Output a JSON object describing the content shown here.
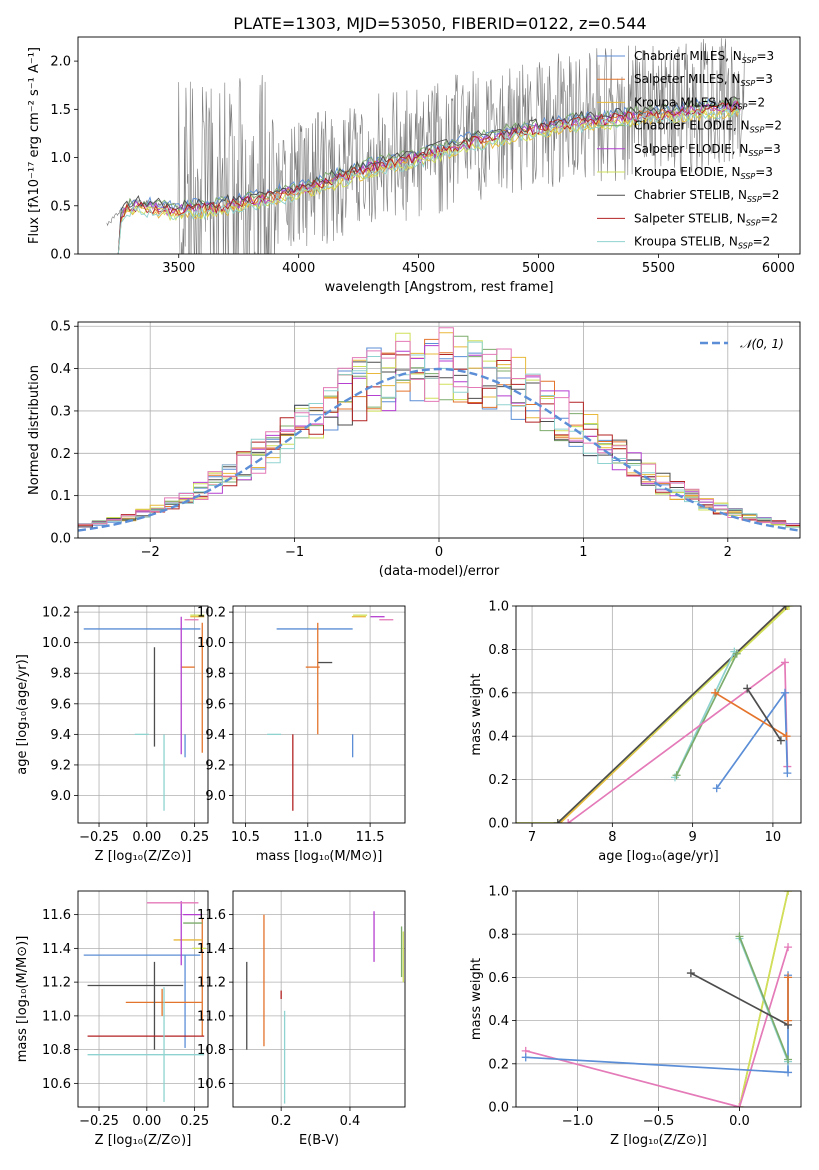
{
  "figure_title": "PLATE=1303, MJD=53050, FIBERID=0122, z=0.544",
  "colors": {
    "Chabrier MILES": "#5b8ed6",
    "Salpeter MILES": "#e4742c",
    "Kroupa MILES": "#e8b93c",
    "Chabrier ELODIE": "#7cac6c",
    "Salpeter ELODIE": "#b43fd0",
    "Kroupa ELODIE": "#cfe05a",
    "Chabrier STELIB": "#4d4d4d",
    "Salpeter STELIB": "#b22222",
    "Kroupa STELIB": "#8fd3d0",
    "pink": "#e47ab8",
    "blue": "#5b8ed6",
    "gauss": "#5b8ed6"
  },
  "chart_data": [
    {
      "id": "spectrum",
      "type": "line",
      "xlabel": "wavelength [Angstrom, rest frame]",
      "ylabel": "Flux [fλ10⁻¹⁷ erg cm⁻² s⁻¹ A⁻¹]",
      "xlim": [
        3080,
        6090
      ],
      "ylim": [
        0,
        2.25
      ],
      "xticks": [
        3500,
        4000,
        4500,
        5000,
        5500,
        6000
      ],
      "yticks": [
        0.0,
        0.5,
        1.0,
        1.5,
        2.0
      ],
      "grid": false,
      "legend_position": "top-right",
      "model_trend": {
        "x": [
          3200,
          3300,
          3500,
          3700,
          3900,
          4100,
          4300,
          4500,
          4700,
          4900,
          5100,
          5300,
          5500,
          5700,
          5850
        ],
        "y": [
          0.3,
          0.55,
          0.5,
          0.55,
          0.65,
          0.78,
          0.95,
          1.05,
          1.2,
          1.3,
          1.4,
          1.45,
          1.5,
          1.55,
          1.58
        ]
      },
      "series": [
        {
          "name": "Chabrier MILES",
          "nssp": "3"
        },
        {
          "name": "Salpeter MILES",
          "nssp": "3"
        },
        {
          "name": "Kroupa MILES",
          "nssp": "2"
        },
        {
          "name": "Chabrier ELODIE",
          "nssp": "2"
        },
        {
          "name": "Salpeter ELODIE",
          "nssp": "3"
        },
        {
          "name": "Kroupa ELODIE",
          "nssp": "3"
        },
        {
          "name": "Chabrier STELIB",
          "nssp": "2"
        },
        {
          "name": "Salpeter STELIB",
          "nssp": "2"
        },
        {
          "name": "Kroupa STELIB",
          "nssp": "2"
        }
      ]
    },
    {
      "id": "residuals",
      "type": "line",
      "xlabel": "(data-model)/error",
      "ylabel": "Normed distribution",
      "xlim": [
        -2.5,
        2.5
      ],
      "ylim": [
        0,
        0.51
      ],
      "xticks": [
        -2,
        -1,
        0,
        1,
        2
      ],
      "yticks": [
        0.0,
        0.1,
        0.2,
        0.3,
        0.4,
        0.5
      ],
      "grid": true,
      "legend_position": "top-right",
      "legend_label": "𝒩(0, 1)",
      "bin_width": 0.1
    },
    {
      "id": "age_vs_Z",
      "type": "scatter",
      "xlabel": "Z [log₁₀(Z/Z⊙)]",
      "ylabel": "age  [log₁₀(age/yr)]",
      "xlim": [
        -0.36,
        0.32
      ],
      "ylim": [
        8.82,
        10.24
      ],
      "xticks": [
        -0.25,
        0.0,
        0.25
      ],
      "xticklabels": [
        "−0.25",
        "0.00",
        "0.25"
      ],
      "yticks": [
        9.0,
        9.2,
        9.4,
        9.6,
        9.8,
        10.0,
        10.2
      ],
      "grid": true,
      "points": [
        {
          "series": "Chabrier MILES",
          "x": 0.28,
          "y": 10.09,
          "xerr": [
            0.61,
            0.0
          ],
          "yerr": [
            0.0,
            0.0
          ]
        },
        {
          "series": "Chabrier MILES",
          "x": 0.2,
          "y": 9.4,
          "xerr": [
            0.0,
            0.0
          ],
          "yerr": [
            0.15,
            0.0
          ]
        },
        {
          "series": "Salpeter MILES",
          "x": 0.24,
          "y": 9.84,
          "xerr": [
            0.0,
            0.0
          ],
          "yerr": [
            0.0,
            0.0
          ]
        },
        {
          "series": "Salpeter MILES",
          "x": 0.29,
          "y": 9.4,
          "xerr": [
            0.0,
            0.0
          ],
          "yerr": [
            0.12,
            0.73
          ]
        },
        {
          "series": "Kroupa MILES",
          "x": 0.29,
          "y": 10.17,
          "xerr": [
            0.0,
            0.0
          ],
          "yerr": [
            0.0,
            0.0
          ]
        },
        {
          "series": "Salpeter ELODIE",
          "x": 0.18,
          "y": 10.17,
          "xerr": [
            0.0,
            0.0
          ],
          "yerr": [
            0.9,
            0.0
          ]
        },
        {
          "series": "Kroupa ELODIE",
          "x": 0.29,
          "y": 10.18,
          "xerr": [
            0.0,
            0.0
          ],
          "yerr": [
            0.0,
            0.0
          ]
        },
        {
          "series": "Chabrier STELIB",
          "x": 0.04,
          "y": 9.87,
          "xerr": [
            0.0,
            0.0
          ],
          "yerr": [
            0.55,
            0.1
          ]
        },
        {
          "series": "Kroupa STELIB",
          "x": 0.0,
          "y": 9.4,
          "xerr": [
            0.0,
            0.0
          ],
          "yerr": [
            0.0,
            0.0
          ]
        },
        {
          "series": "Kroupa STELIB",
          "x": 0.09,
          "y": 9.4,
          "xerr": [
            0.0,
            0.0
          ],
          "yerr": [
            0.5,
            0.0
          ]
        },
        {
          "series": "pink",
          "x": 0.26,
          "y": 10.15,
          "xerr": [
            0.0,
            0.0
          ],
          "yerr": [
            0.0,
            0.0
          ]
        }
      ]
    },
    {
      "id": "age_vs_mass",
      "type": "scatter",
      "xlabel": "mass [log₁₀(M/M⊙)]",
      "ylabel": "",
      "xlim": [
        10.4,
        11.78
      ],
      "ylim": [
        8.82,
        10.24
      ],
      "xticks": [
        10.5,
        11.0,
        11.5
      ],
      "yticks": [
        9.0,
        9.2,
        9.4,
        9.6,
        9.8,
        10.0,
        10.2
      ],
      "grid": true,
      "points": [
        {
          "series": "Chabrier MILES",
          "x": 11.36,
          "y": 9.4,
          "xerr": [
            0.0,
            0.0
          ],
          "yerr": [
            0.15,
            0.0
          ]
        },
        {
          "series": "Chabrier MILES",
          "x": 11.36,
          "y": 10.09,
          "xerr": [
            0.61,
            0.0
          ],
          "yerr": [
            0.0,
            0.0
          ]
        },
        {
          "series": "Salpeter MILES",
          "x": 11.08,
          "y": 9.84,
          "xerr": [
            0.0,
            0.0
          ],
          "yerr": [
            0.0,
            0.0
          ]
        },
        {
          "series": "Salpeter MILES",
          "x": 11.08,
          "y": 9.4,
          "xerr": [
            0.0,
            0.0
          ],
          "yerr": [
            0.0,
            0.73
          ]
        },
        {
          "series": "Kroupa MILES",
          "x": 11.45,
          "y": 10.17,
          "xerr": [
            0.0,
            0.0
          ],
          "yerr": [
            0.0,
            0.0
          ]
        },
        {
          "series": "Salpeter ELODIE",
          "x": 11.6,
          "y": 10.17,
          "xerr": [
            0.0,
            0.0
          ],
          "yerr": [
            0.0,
            0.0
          ]
        },
        {
          "series": "Kroupa ELODIE",
          "x": 11.46,
          "y": 10.18,
          "xerr": [
            0.0,
            0.0
          ],
          "yerr": [
            0.0,
            0.0
          ]
        },
        {
          "series": "Chabrier STELIB",
          "x": 11.18,
          "y": 9.87,
          "xerr": [
            0.0,
            0.0
          ],
          "yerr": [
            0.0,
            0.0
          ]
        },
        {
          "series": "Salpeter STELIB",
          "x": 10.88,
          "y": 9.4,
          "xerr": [
            0.0,
            0.0
          ],
          "yerr": [
            0.5,
            0.0
          ]
        },
        {
          "series": "Kroupa STELIB",
          "x": 10.77,
          "y": 9.4,
          "xerr": [
            0.0,
            0.0
          ],
          "yerr": [
            0.0,
            0.0
          ]
        },
        {
          "series": "pink",
          "x": 11.67,
          "y": 10.15,
          "xerr": [
            0.0,
            0.0
          ],
          "yerr": [
            0.0,
            0.0
          ]
        }
      ]
    },
    {
      "id": "massweight_vs_age",
      "type": "line",
      "xlabel": "age  [log₁₀(age/yr)]",
      "ylabel": "mass weight",
      "xlim": [
        6.8,
        10.35
      ],
      "ylim": [
        0,
        1.0
      ],
      "xticks": [
        7,
        8,
        9,
        10
      ],
      "yticks": [
        0.0,
        0.2,
        0.4,
        0.6,
        0.8,
        1.0
      ],
      "grid": true,
      "series": [
        {
          "name": "Kroupa MILES",
          "x": [
            7.35,
            10.18
          ],
          "y": [
            0.0,
            1.0
          ]
        },
        {
          "name": "Kroupa ELODIE",
          "x": [
            6.75,
            7.32,
            10.2
          ],
          "y": [
            0.0,
            0.0,
            1.0
          ]
        },
        {
          "name": "Chabrier STELIB",
          "x": [
            7.32,
            10.16
          ],
          "y": [
            0.0,
            1.0
          ]
        },
        {
          "name": "Kroupa STELIB",
          "x": [
            8.78,
            9.52
          ],
          "y": [
            0.21,
            0.79
          ]
        },
        {
          "name": "Chabrier ELODIE",
          "x": [
            8.8,
            9.55
          ],
          "y": [
            0.22,
            0.78
          ]
        },
        {
          "name": "pink",
          "x": [
            7.45,
            10.15,
            10.18
          ],
          "y": [
            0.0,
            0.74,
            0.26
          ]
        },
        {
          "name": "Chabrier MILES",
          "x": [
            9.3,
            10.15,
            10.18
          ],
          "y": [
            0.16,
            0.6,
            0.23
          ]
        },
        {
          "name": "Salpeter MILES",
          "x": [
            9.28,
            10.17
          ],
          "y": [
            0.6,
            0.4
          ]
        },
        {
          "name": "Chabrier STELIB",
          "x": [
            9.68,
            10.1
          ],
          "y": [
            0.62,
            0.38
          ]
        }
      ]
    },
    {
      "id": "mass_vs_Z",
      "type": "scatter",
      "xlabel": "Z [log₁₀(Z/Z⊙)]",
      "ylabel": "mass [log₁₀(M/M⊙)]",
      "xlim": [
        -0.36,
        0.32
      ],
      "ylim": [
        10.46,
        11.74
      ],
      "xticks": [
        -0.25,
        0.0,
        0.25
      ],
      "xticklabels": [
        "−0.25",
        "0.00",
        "0.25"
      ],
      "yticks": [
        10.6,
        10.8,
        11.0,
        11.2,
        11.4,
        11.6
      ],
      "grid": true,
      "points": [
        {
          "series": "Chabrier MILES",
          "x": 0.28,
          "y": 11.36,
          "xerr": [
            0.61,
            0.0
          ],
          "yerr": [
            0.0,
            0.0
          ]
        },
        {
          "series": "Chabrier MILES",
          "x": 0.2,
          "y": 11.36,
          "xerr": [
            0.0,
            0.0
          ],
          "yerr": [
            0.55,
            0.0
          ]
        },
        {
          "series": "Salpeter MILES",
          "x": 0.29,
          "y": 11.08,
          "xerr": [
            0.4,
            0.0
          ],
          "yerr": [
            0.0,
            0.0
          ]
        },
        {
          "series": "Salpeter MILES",
          "x": 0.29,
          "y": 11.08,
          "xerr": [
            0.0,
            0.0
          ],
          "yerr": [
            0.2,
            0.5
          ]
        },
        {
          "series": "Salpeter MILES",
          "x": 0.08,
          "y": 11.08,
          "xerr": [
            0.0,
            0.0
          ],
          "yerr": [
            0.08,
            0.08
          ]
        },
        {
          "series": "Kroupa MILES",
          "x": 0.29,
          "y": 11.45,
          "xerr": [
            0.15,
            0.0
          ],
          "yerr": [
            0.0,
            0.0
          ]
        },
        {
          "series": "Chabrier ELODIE",
          "x": 0.29,
          "y": 11.55,
          "xerr": [
            0.1,
            0.0
          ],
          "yerr": [
            0.0,
            0.0
          ]
        },
        {
          "series": "Salpeter ELODIE",
          "x": 0.29,
          "y": 11.6,
          "xerr": [
            0.1,
            0.0
          ],
          "yerr": [
            0.0,
            0.0
          ]
        },
        {
          "series": "Salpeter ELODIE",
          "x": 0.18,
          "y": 11.6,
          "xerr": [
            0.0,
            0.0
          ],
          "yerr": [
            0.3,
            0.08
          ]
        },
        {
          "series": "Kroupa ELODIE",
          "x": 0.3,
          "y": 11.4,
          "xerr": [
            0.0,
            0.0
          ],
          "yerr": [
            0.0,
            0.0
          ]
        },
        {
          "series": "Chabrier STELIB",
          "x": 0.04,
          "y": 11.18,
          "xerr": [
            0.35,
            0.15
          ],
          "yerr": [
            0.38,
            0.14
          ]
        },
        {
          "series": "Salpeter STELIB",
          "x": 0.3,
          "y": 10.88,
          "xerr": [
            0.61,
            0.0
          ],
          "yerr": [
            0.0,
            0.0
          ]
        },
        {
          "series": "Kroupa STELIB",
          "x": 0.3,
          "y": 10.77,
          "xerr": [
            0.61,
            0.0
          ],
          "yerr": [
            0.0,
            0.0
          ]
        },
        {
          "series": "Kroupa STELIB",
          "x": 0.09,
          "y": 10.77,
          "xerr": [
            0.0,
            0.0
          ],
          "yerr": [
            0.28,
            0.4
          ]
        },
        {
          "series": "pink",
          "x": 0.27,
          "y": 11.67,
          "xerr": [
            0.27,
            0.0
          ],
          "yerr": [
            0.0,
            0.0
          ]
        }
      ]
    },
    {
      "id": "mass_vs_EBV",
      "type": "scatter",
      "xlabel": "E(B-V)",
      "ylabel": "",
      "xlim": [
        0.06,
        0.56
      ],
      "ylim": [
        10.46,
        11.74
      ],
      "xticks": [
        0.2,
        0.4
      ],
      "yticks": [
        10.6,
        10.8,
        11.0,
        11.2,
        11.4,
        11.6
      ],
      "grid": true,
      "points": [
        {
          "series": "Chabrier STELIB",
          "x": 0.1,
          "y": 11.05,
          "xerr": [
            0.0,
            0.0
          ],
          "yerr": [
            0.25,
            0.27
          ]
        },
        {
          "series": "Salpeter MILES",
          "x": 0.15,
          "y": 11.3,
          "xerr": [
            0.0,
            0.0
          ],
          "yerr": [
            0.48,
            0.3
          ]
        },
        {
          "series": "Salpeter STELIB",
          "x": 0.2,
          "y": 11.1,
          "xerr": [
            0.0,
            0.0
          ],
          "yerr": [
            0.0,
            0.05
          ]
        },
        {
          "series": "Kroupa STELIB",
          "x": 0.21,
          "y": 10.76,
          "xerr": [
            0.0,
            0.0
          ],
          "yerr": [
            0.28,
            0.27
          ]
        },
        {
          "series": "Salpeter ELODIE",
          "x": 0.47,
          "y": 11.47,
          "xerr": [
            0.0,
            0.0
          ],
          "yerr": [
            0.15,
            0.15
          ]
        },
        {
          "series": "Chabrier ELODIE",
          "x": 0.55,
          "y": 11.38,
          "xerr": [
            0.0,
            0.0
          ],
          "yerr": [
            0.15,
            0.15
          ]
        },
        {
          "series": "Kroupa ELODIE",
          "x": 0.555,
          "y": 11.35,
          "xerr": [
            0.0,
            0.0
          ],
          "yerr": [
            0.15,
            0.15
          ]
        }
      ]
    },
    {
      "id": "massweight_vs_Z",
      "type": "line",
      "xlabel": "Z [log₁₀(Z/Z⊙)]",
      "ylabel": "mass weight",
      "xlim": [
        -1.38,
        0.38
      ],
      "ylim": [
        0,
        1.0
      ],
      "xticks": [
        -1.0,
        -0.5,
        0.0
      ],
      "xticklabels": [
        "−1.0",
        "−0.5",
        "0.0"
      ],
      "yticks": [
        0.0,
        0.2,
        0.4,
        0.6,
        0.8,
        1.0
      ],
      "grid": true,
      "series": [
        {
          "name": "Kroupa MILES",
          "x": [
            0.0,
            0.3
          ],
          "y": [
            0.0,
            1.0
          ]
        },
        {
          "name": "Kroupa ELODIE",
          "x": [
            0.0,
            0.3
          ],
          "y": [
            0.0,
            1.0
          ]
        },
        {
          "name": "pink",
          "x": [
            -1.32,
            0.0,
            0.3
          ],
          "y": [
            0.26,
            0.0,
            0.74
          ]
        },
        {
          "name": "Chabrier MILES",
          "x": [
            -1.32,
            0.3,
            0.3
          ],
          "y": [
            0.23,
            0.16,
            0.61
          ]
        },
        {
          "name": "Kroupa STELIB",
          "x": [
            0.0,
            0.3
          ],
          "y": [
            0.78,
            0.21
          ]
        },
        {
          "name": "Chabrier ELODIE",
          "x": [
            0.0,
            0.3
          ],
          "y": [
            0.79,
            0.22
          ]
        },
        {
          "name": "Chabrier STELIB",
          "x": [
            -0.3,
            0.3
          ],
          "y": [
            0.62,
            0.38
          ]
        },
        {
          "name": "Salpeter MILES",
          "x": [
            0.3,
            0.3
          ],
          "y": [
            0.6,
            0.4
          ]
        }
      ]
    }
  ]
}
